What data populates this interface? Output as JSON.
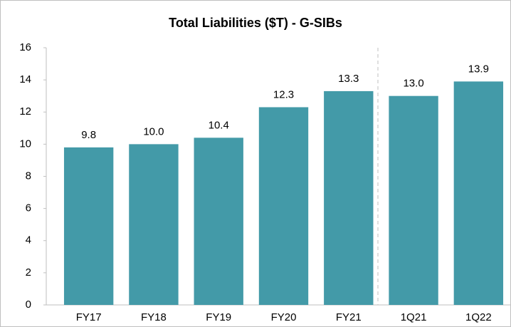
{
  "chart_data": {
    "type": "bar",
    "title": "Total Liabilities ($T) - G-SIBs",
    "categories": [
      "FY17",
      "FY18",
      "FY19",
      "FY20",
      "FY21",
      "1Q21",
      "1Q22"
    ],
    "values": [
      9.8,
      10.0,
      10.4,
      12.3,
      13.3,
      13.0,
      13.9
    ],
    "value_labels": [
      "9.8",
      "10.0",
      "10.4",
      "12.3",
      "13.3",
      "13.0",
      "13.9"
    ],
    "color": "#439aa8",
    "ylim": [
      0,
      16
    ],
    "yticks": [
      0,
      2,
      4,
      6,
      8,
      10,
      12,
      14,
      16
    ],
    "grid": false
  }
}
